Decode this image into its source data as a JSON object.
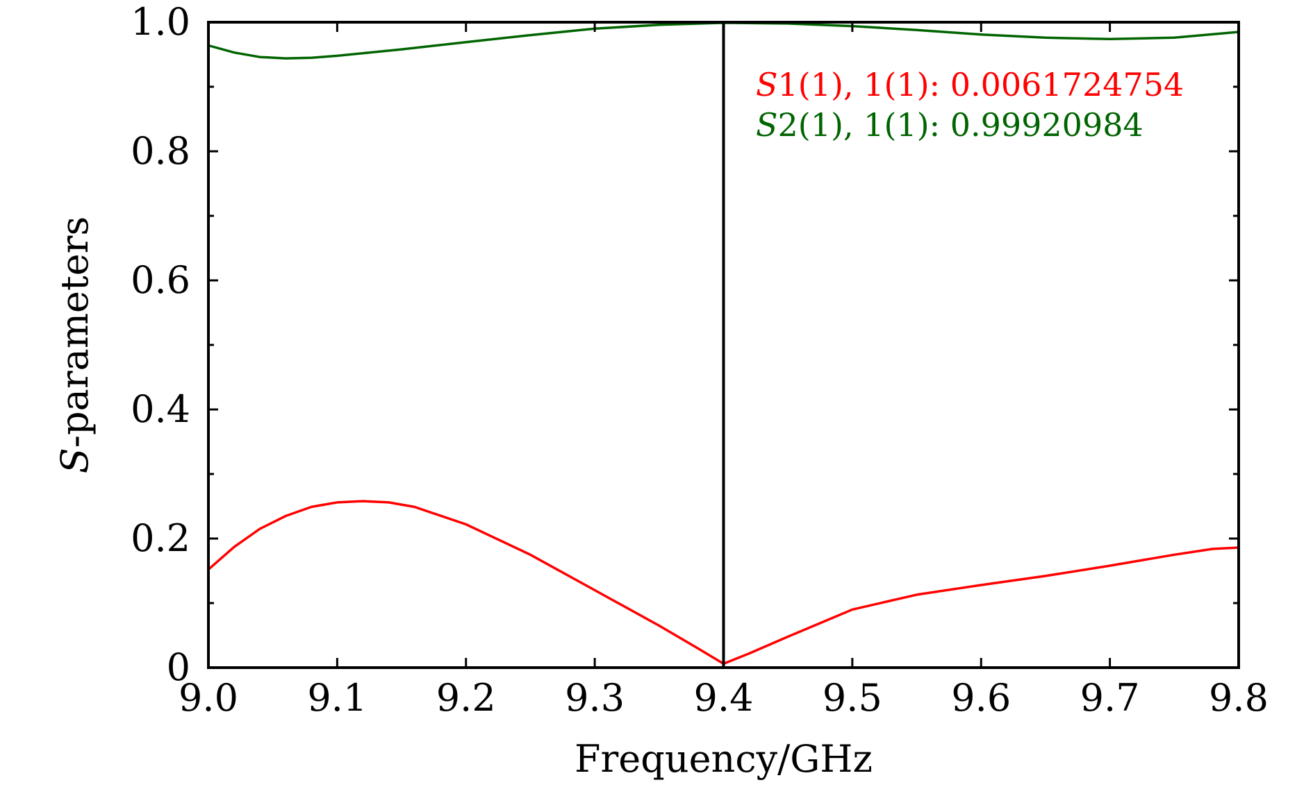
{
  "chart_data": {
    "type": "line",
    "title": "",
    "xlabel": "Frequency/GHz",
    "ylabel_italic": "S",
    "ylabel_rest": "-parameters",
    "xlim": [
      9.0,
      9.8
    ],
    "ylim": [
      0,
      1.0
    ],
    "xticks": [
      9.0,
      9.1,
      9.2,
      9.3,
      9.4,
      9.5,
      9.6,
      9.7,
      9.8
    ],
    "xtick_labels": [
      "9.0",
      "9.1",
      "9.2",
      "9.3",
      "9.4",
      "9.5",
      "9.6",
      "9.7",
      "9.8"
    ],
    "yticks": [
      0,
      0.2,
      0.4,
      0.6,
      0.8,
      1.0
    ],
    "ytick_labels": [
      "0",
      "0.2",
      "0.4",
      "0.6",
      "0.8",
      "1.0"
    ],
    "y_minor_ticks": [
      0.1,
      0.3,
      0.5,
      0.7,
      0.9
    ],
    "grid": false,
    "marker_line": {
      "x": 9.4,
      "color": "#000000"
    },
    "series": [
      {
        "color": "#ff0000",
        "x": [
          9.0,
          9.02,
          9.04,
          9.06,
          9.08,
          9.1,
          9.12,
          9.14,
          9.16,
          9.2,
          9.25,
          9.3,
          9.35,
          9.38,
          9.4,
          9.42,
          9.45,
          9.5,
          9.55,
          9.6,
          9.65,
          9.7,
          9.75,
          9.78,
          9.8
        ],
        "y": [
          0.152,
          0.187,
          0.215,
          0.235,
          0.249,
          0.256,
          0.258,
          0.256,
          0.249,
          0.222,
          0.175,
          0.12,
          0.065,
          0.03,
          0.006,
          0.022,
          0.048,
          0.09,
          0.113,
          0.128,
          0.142,
          0.158,
          0.175,
          0.184,
          0.186
        ]
      },
      {
        "color": "#006400",
        "x": [
          9.0,
          9.02,
          9.04,
          9.06,
          9.08,
          9.1,
          9.15,
          9.2,
          9.25,
          9.3,
          9.35,
          9.4,
          9.45,
          9.5,
          9.55,
          9.6,
          9.65,
          9.7,
          9.75,
          9.8
        ],
        "y": [
          0.964,
          0.953,
          0.946,
          0.944,
          0.945,
          0.948,
          0.958,
          0.969,
          0.98,
          0.99,
          0.996,
          0.999,
          0.998,
          0.994,
          0.988,
          0.981,
          0.976,
          0.974,
          0.976,
          0.985
        ]
      }
    ],
    "annotations": [
      {
        "italic": "S",
        "text": "1(1), 1(1): 0.0061724754",
        "color": "#ff0000"
      },
      {
        "italic": "S",
        "text": "2(1), 1(1): 0.99920984",
        "color": "#006400"
      }
    ]
  }
}
